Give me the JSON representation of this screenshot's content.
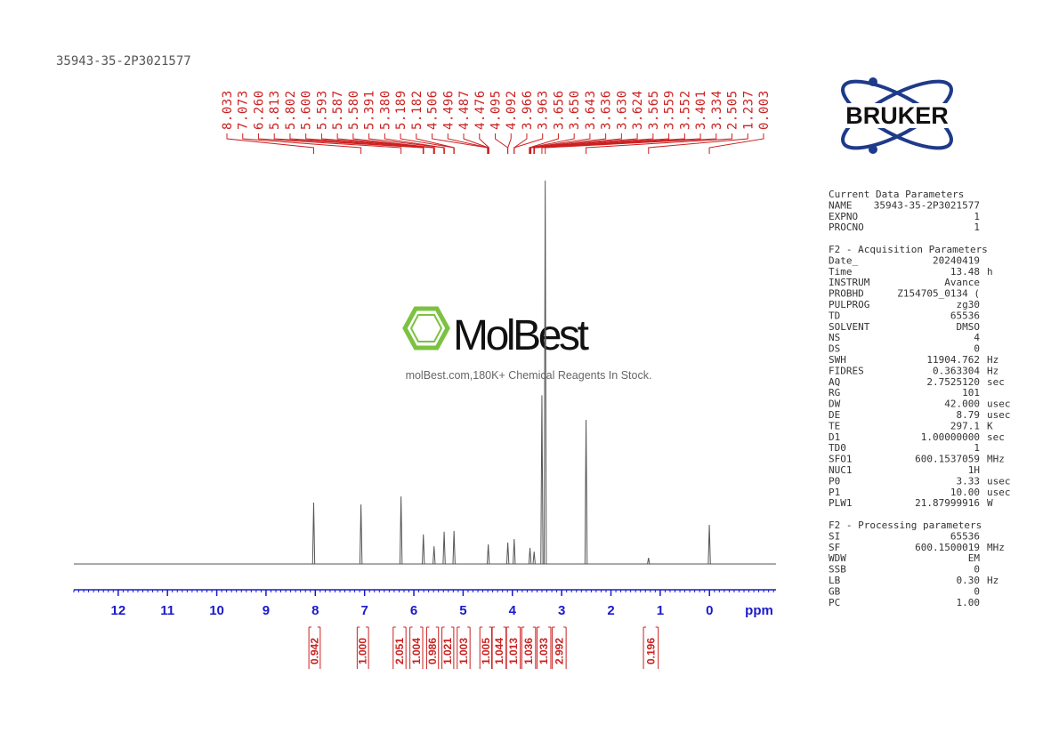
{
  "sample_name": "35943-35-2P3021577",
  "logo": "BRUKER",
  "watermark": {
    "name": "MolBest",
    "tagline": "molBest.com,180K+ Chemical Reagents In Stock."
  },
  "parameters": [
    {
      "title": "Current Data Parameters",
      "rows": [
        [
          "NAME",
          "35943-35-2P3021577"
        ],
        [
          "EXPNO",
          "1"
        ],
        [
          "PROCNO",
          "1"
        ]
      ]
    },
    {
      "title": "F2 - Acquisition Parameters",
      "rows": [
        [
          "Date_",
          "20240419"
        ],
        [
          "Time",
          "13.48",
          "h"
        ],
        [
          "INSTRUM",
          "Avance"
        ],
        [
          "PROBHD",
          "Z154705_0134 ("
        ],
        [
          "PULPROG",
          "zg30"
        ],
        [
          "TD",
          "65536"
        ],
        [
          "SOLVENT",
          "DMSO"
        ],
        [
          "NS",
          "4"
        ],
        [
          "DS",
          "0"
        ],
        [
          "SWH",
          "11904.762",
          "Hz"
        ],
        [
          "FIDRES",
          "0.363304",
          "Hz"
        ],
        [
          "AQ",
          "2.7525120",
          "sec"
        ],
        [
          "RG",
          "101"
        ],
        [
          "DW",
          "42.000",
          "usec"
        ],
        [
          "DE",
          "8.79",
          "usec"
        ],
        [
          "TE",
          "297.1",
          "K"
        ],
        [
          "D1",
          "1.00000000",
          "sec"
        ],
        [
          "TD0",
          "1"
        ],
        [
          "SFO1",
          "600.1537059",
          "MHz"
        ],
        [
          "NUC1",
          "1H"
        ],
        [
          "P0",
          "3.33",
          "usec"
        ],
        [
          "P1",
          "10.00",
          "usec"
        ],
        [
          "PLW1",
          "21.87999916",
          "W"
        ]
      ]
    },
    {
      "title": "F2 - Processing parameters",
      "rows": [
        [
          "SI",
          "65536"
        ],
        [
          "SF",
          "600.1500019",
          "MHz"
        ],
        [
          "WDW",
          "EM"
        ],
        [
          "SSB",
          "0"
        ],
        [
          "LB",
          "0.30",
          "Hz"
        ],
        [
          "GB",
          "0"
        ],
        [
          "PC",
          "1.00"
        ]
      ]
    }
  ],
  "chart_data": {
    "type": "nmr",
    "x_label": "ppm",
    "xlim": [
      12.9,
      -1.35
    ],
    "xticks": [
      12,
      11,
      10,
      9,
      8,
      7,
      6,
      5,
      4,
      3,
      2,
      1,
      0
    ],
    "ylim": [
      0,
      100
    ],
    "x": [
      8.033,
      7.073,
      6.26,
      5.807,
      5.59,
      5.385,
      5.185,
      4.49,
      4.093,
      3.964,
      3.643,
      3.559,
      3.401,
      3.334,
      2.505,
      1.237,
      0.003
    ],
    "values": [
      16,
      15.5,
      17.6,
      7.7,
      4.6,
      8.4,
      8.6,
      5.1,
      5.6,
      6.5,
      4.2,
      3.2,
      44,
      100,
      37.6,
      1.6,
      10.2
    ],
    "color": "#555555",
    "label_color": "#cc2020",
    "axis_color": "#1a1acc",
    "peak_labels": [
      8.033,
      7.073,
      {
        "value": 6.26,
        "label": "6.260"
      },
      5.813,
      5.802,
      {
        "value": 5.6,
        "label": "5.600"
      },
      5.593,
      5.587,
      {
        "value": 5.58,
        "label": "5.580"
      },
      5.391,
      {
        "value": 5.38,
        "label": "5.380"
      },
      5.189,
      5.182,
      4.506,
      4.496,
      4.487,
      4.476,
      4.095,
      4.092,
      3.966,
      3.963,
      3.656,
      {
        "value": 3.65,
        "label": "3.650"
      },
      3.643,
      3.636,
      {
        "value": 3.63,
        "label": "3.630"
      },
      3.624,
      3.565,
      3.559,
      3.552,
      3.401,
      3.334,
      2.505,
      1.237,
      0.003
    ],
    "integrals": {
      "from": [
        8.13,
        7.15,
        6.42,
        6.08,
        5.74,
        5.43,
        5.12,
        4.66,
        4.41,
        4.12,
        3.81,
        3.5,
        3.19,
        1.34
      ],
      "to": [
        7.9,
        6.92,
        6.16,
        5.82,
        5.5,
        5.19,
        4.86,
        4.42,
        4.13,
        3.84,
        3.53,
        3.22,
        2.91,
        1.04
      ],
      "values": [
        {
          "value": 0.942,
          "label": "0.942"
        },
        {
          "value": 1,
          "label": "1.000"
        },
        {
          "value": 2.051,
          "label": "2.051"
        },
        {
          "value": 1.004,
          "label": "1.004"
        },
        {
          "value": 0.986,
          "label": "0.986"
        },
        {
          "value": 1.021,
          "label": "1.021"
        },
        {
          "value": 1.003,
          "label": "1.003"
        },
        {
          "value": 1.005,
          "label": "1.005"
        },
        {
          "value": 1.044,
          "label": "1.044"
        },
        {
          "value": 1.013,
          "label": "1.013"
        },
        {
          "value": 1.036,
          "label": "1.036"
        },
        {
          "value": 1.033,
          "label": "1.033"
        },
        {
          "value": 2.992,
          "label": "2.992"
        },
        {
          "value": 0.196,
          "label": "0.196"
        }
      ]
    }
  }
}
